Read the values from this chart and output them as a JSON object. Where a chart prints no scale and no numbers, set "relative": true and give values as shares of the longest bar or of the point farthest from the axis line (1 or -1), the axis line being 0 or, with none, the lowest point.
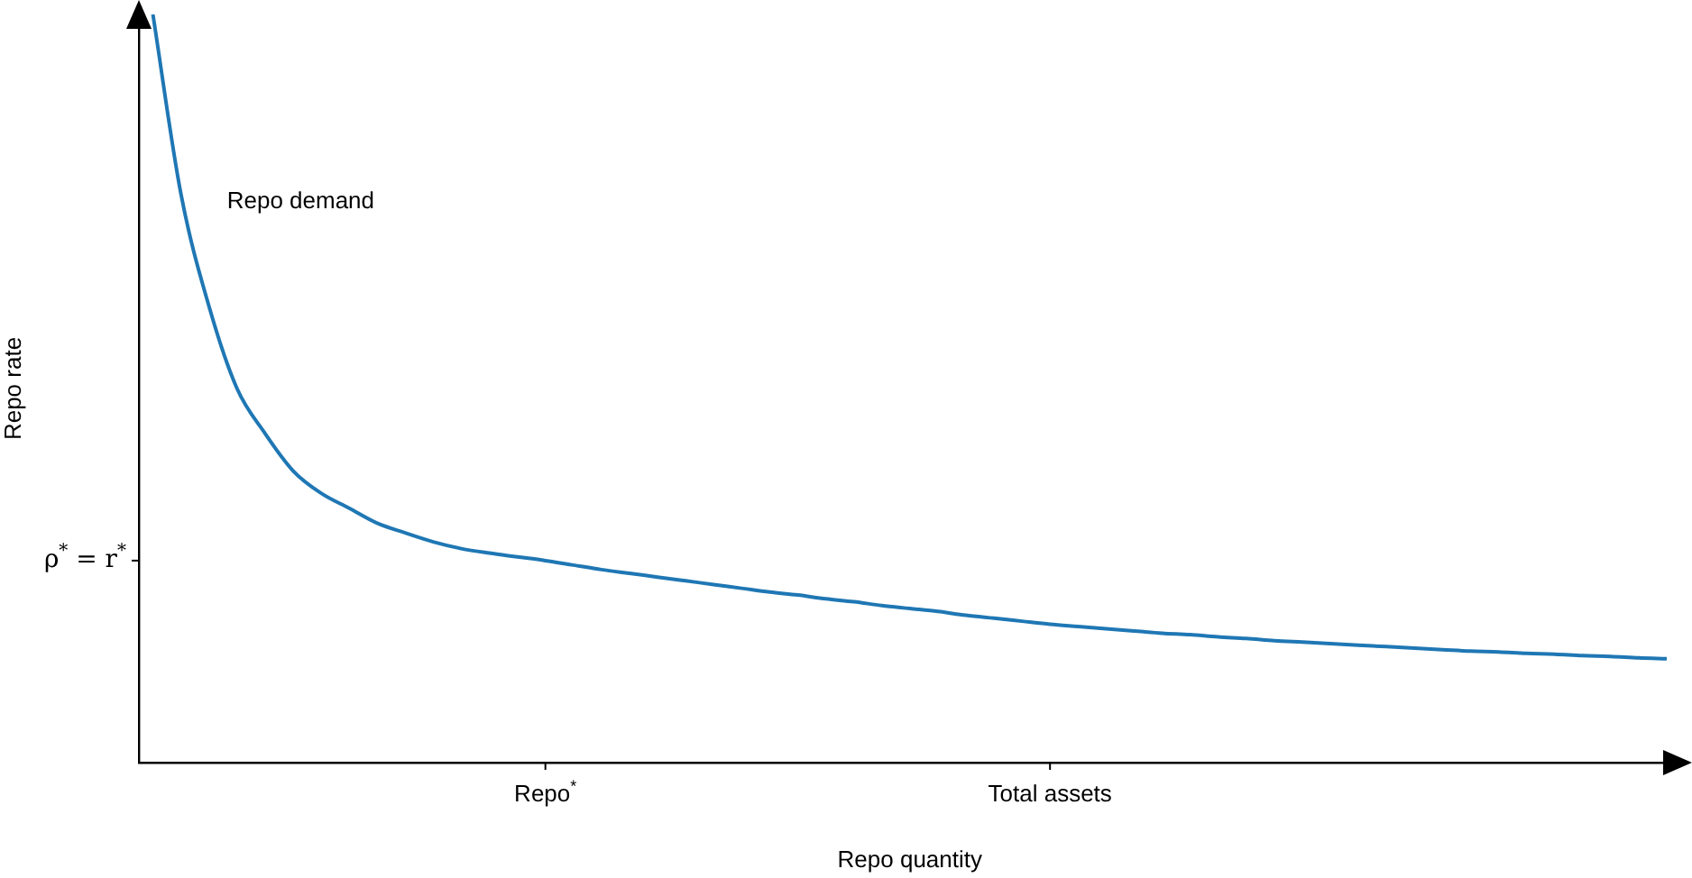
{
  "chart_data": {
    "type": "line",
    "relative": true,
    "xlabel": "Repo quantity",
    "ylabel": "Repo rate",
    "categories": [
      null,
      null,
      null,
      null,
      null,
      null,
      null,
      null,
      null,
      null,
      null,
      null,
      null,
      null,
      "Repo$^{*}$",
      null,
      null,
      null,
      null,
      null,
      null,
      null,
      null,
      null,
      null,
      null,
      null,
      null,
      null,
      null,
      null,
      null,
      "Total assets",
      null,
      null,
      null,
      null,
      null,
      null,
      null,
      null,
      null,
      null,
      null,
      null,
      null,
      null,
      null,
      null,
      null,
      null,
      null,
      null,
      null,
      null
    ],
    "series": [
      {
        "name": "Repo demand",
        "color": "#1f77b4",
        "values": [
          1.0,
          0.76,
          0.61,
          0.5,
          0.44,
          0.39,
          0.36,
          0.34,
          0.32,
          0.307,
          0.295,
          0.286,
          0.28,
          0.275,
          0.27,
          0.264,
          0.258,
          0.253,
          0.248,
          0.243,
          0.238,
          0.233,
          0.228,
          0.224,
          0.219,
          0.215,
          0.21,
          0.206,
          0.202,
          0.197,
          0.193,
          0.189,
          0.185,
          0.182,
          0.179,
          0.176,
          0.173,
          0.171,
          0.168,
          0.166,
          0.163,
          0.161,
          0.159,
          0.157,
          0.155,
          0.153,
          0.151,
          0.149,
          0.148,
          0.146,
          0.145,
          0.143,
          0.142,
          0.14,
          0.139
        ]
      }
    ],
    "annotations": [
      "ρ$^{*}$ = r$^{*}$"
    ],
    "grid": false,
    "legend": false,
    "marker": "none",
    "line_style": "solid"
  }
}
